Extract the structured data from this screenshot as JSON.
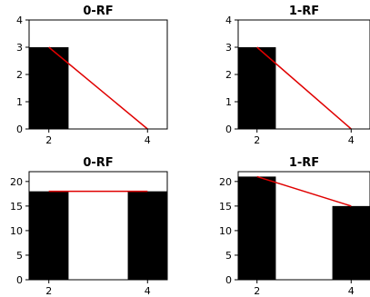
{
  "chart_data": [
    {
      "type": "bar",
      "title": "0-RF",
      "x": [
        2,
        4
      ],
      "values": [
        3,
        0
      ],
      "line": {
        "x": [
          2,
          4
        ],
        "y": [
          3,
          0
        ],
        "color": "#e00000"
      },
      "bar_color": "#000000",
      "xticks": [
        2,
        4
      ],
      "yticks": [
        0,
        1,
        2,
        3,
        4
      ],
      "ylim": [
        0,
        4
      ],
      "xlabel": "",
      "ylabel": ""
    },
    {
      "type": "bar",
      "title": "1-RF",
      "x": [
        2,
        4
      ],
      "values": [
        3,
        0
      ],
      "line": {
        "x": [
          2,
          4
        ],
        "y": [
          3,
          0
        ],
        "color": "#e00000"
      },
      "bar_color": "#000000",
      "xticks": [
        2,
        4
      ],
      "yticks": [
        0,
        1,
        2,
        3,
        4
      ],
      "ylim": [
        0,
        4
      ],
      "xlabel": "",
      "ylabel": ""
    },
    {
      "type": "bar",
      "title": "0-RF",
      "x": [
        2,
        4
      ],
      "values": [
        18,
        18
      ],
      "line": {
        "x": [
          2,
          4
        ],
        "y": [
          18,
          18
        ],
        "color": "#e00000"
      },
      "bar_color": "#000000",
      "xticks": [
        2,
        4
      ],
      "yticks": [
        0,
        5,
        10,
        15,
        20
      ],
      "ylim": [
        0,
        22
      ],
      "xlabel": "",
      "ylabel": ""
    },
    {
      "type": "bar",
      "title": "1-RF",
      "x": [
        2,
        4
      ],
      "values": [
        21,
        15
      ],
      "line": {
        "x": [
          2,
          4
        ],
        "y": [
          21,
          15
        ],
        "color": "#e00000"
      },
      "bar_color": "#000000",
      "xticks": [
        2,
        4
      ],
      "yticks": [
        0,
        5,
        10,
        15,
        20
      ],
      "ylim": [
        0,
        22
      ],
      "xlabel": "",
      "ylabel": ""
    }
  ]
}
